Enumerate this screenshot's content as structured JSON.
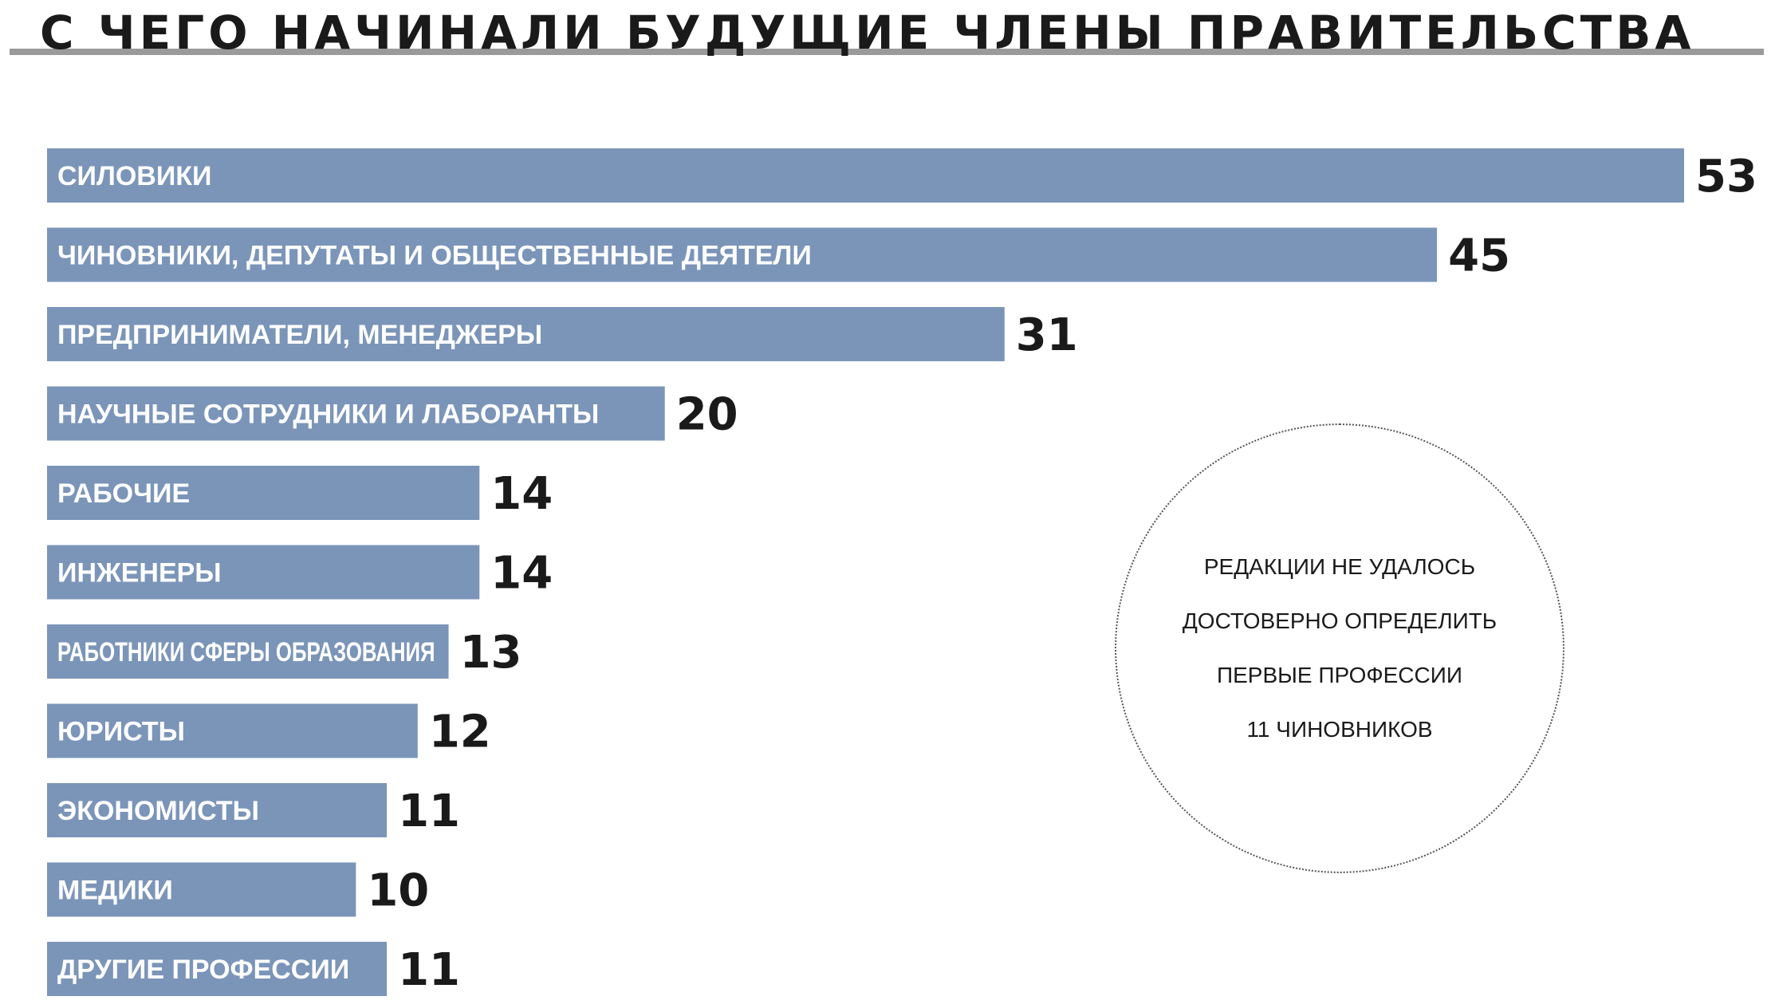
{
  "chart_data": {
    "type": "bar",
    "orientation": "horizontal",
    "title": "С ЧЕГО НАЧИНАЛИ БУДУЩИЕ ЧЛЕНЫ ПРАВИТЕЛЬСТВА",
    "categories": [
      "СИЛОВИКИ",
      "ЧИНОВНИКИ, ДЕПУТАТЫ И ОБЩЕСТВЕННЫЕ ДЕЯТЕЛИ",
      "ПРЕДПРИНИМАТЕЛИ, МЕНЕДЖЕРЫ",
      "НАУЧНЫЕ СОТРУДНИКИ И ЛАБОРАНТЫ",
      "РАБОЧИЕ",
      "ИНЖЕНЕРЫ",
      "РАБОТНИКИ СФЕРЫ ОБРАЗОВАНИЯ",
      "ЮРИСТЫ",
      "ЭКОНОМИСТЫ",
      "МЕДИКИ",
      "ДРУГИЕ ПРОФЕССИИ"
    ],
    "values": [
      53,
      45,
      31,
      20,
      14,
      14,
      13,
      12,
      11,
      10,
      11
    ],
    "xlim": [
      0,
      53
    ],
    "grid": false,
    "bar_color": "#7b95b9",
    "text_color": "#1a1a1a"
  },
  "note": {
    "lines": [
      "РЕДАКЦИИ НЕ УДАЛОСЬ",
      "ДОСТОВЕРНО ОПРЕДЕЛИТЬ",
      "ПЕРВЫЕ ПРОФЕССИИ",
      "11 ЧИНОВНИКОВ"
    ]
  }
}
